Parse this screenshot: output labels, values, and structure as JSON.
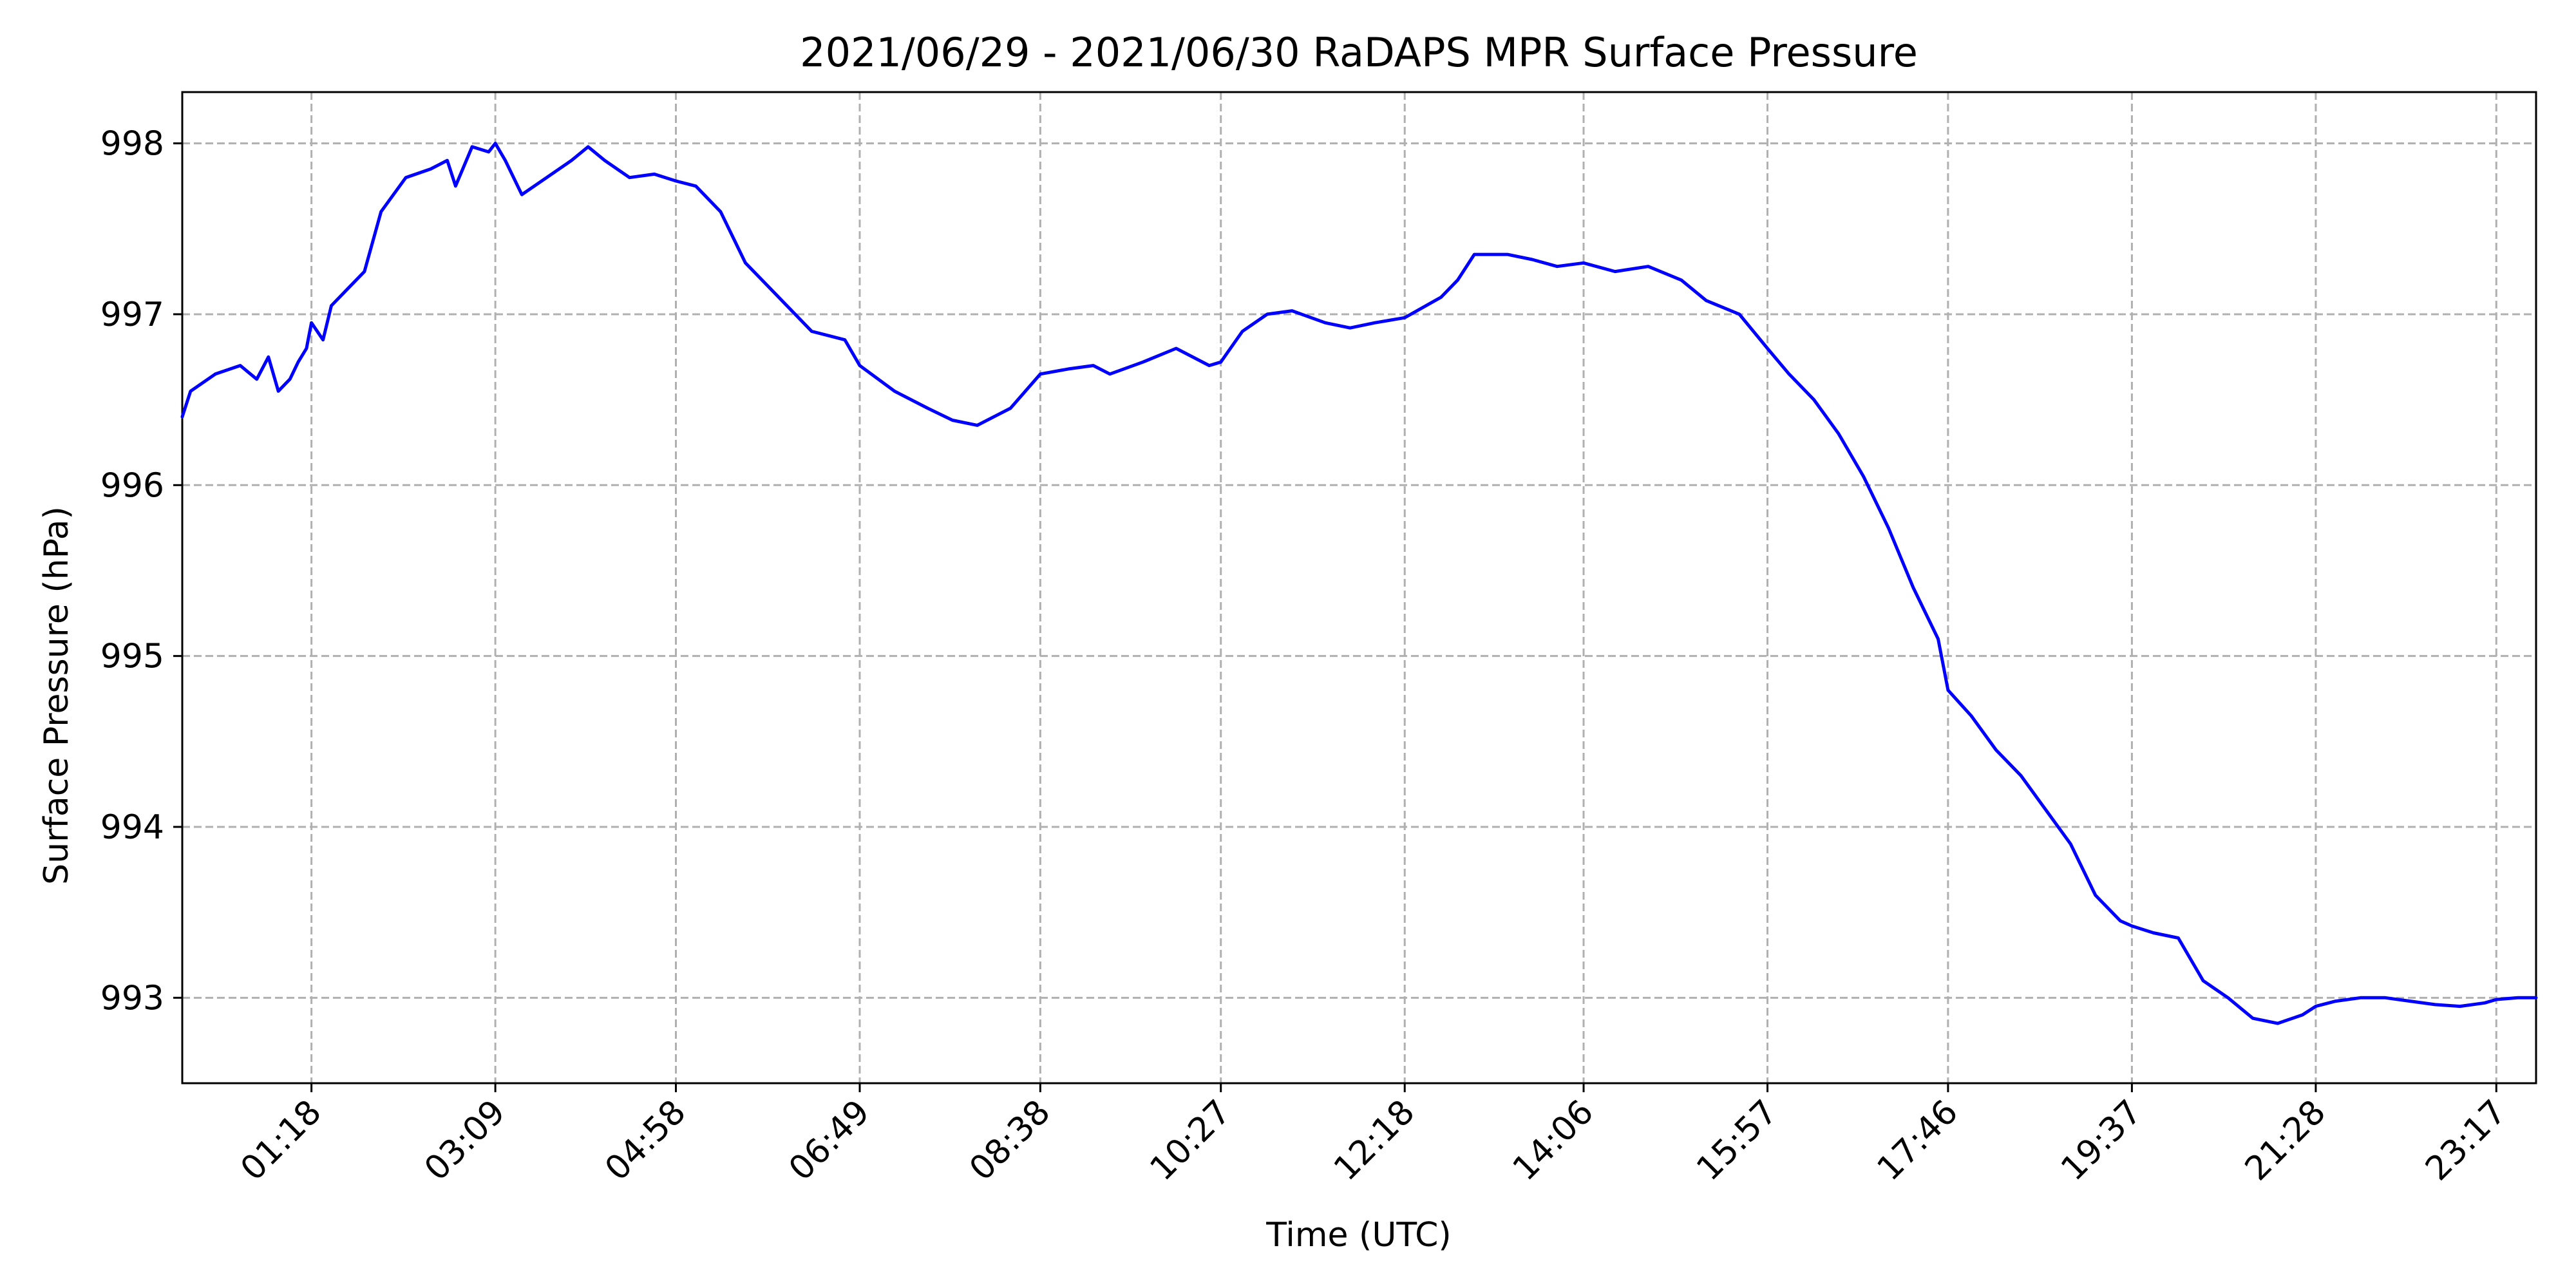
{
  "chart_data": {
    "type": "line",
    "title": "2021/06/29 - 2021/06/30 RaDAPS MPR Surface Pressure",
    "xlabel": "Time (UTC)",
    "ylabel": "Surface Pressure (hPa)",
    "xlim": [
      "00:00",
      "23:41"
    ],
    "ylim": [
      992.5,
      998.3
    ],
    "grid": true,
    "x_ticks": [
      "01:18",
      "03:09",
      "04:58",
      "06:49",
      "08:38",
      "10:27",
      "12:18",
      "14:06",
      "15:57",
      "17:46",
      "19:37",
      "21:28",
      "23:17"
    ],
    "y_ticks": [
      998,
      997,
      996,
      995,
      994,
      993
    ],
    "series": [
      {
        "color": "#0000ff",
        "x": [
          "00:00",
          "00:05",
          "00:20",
          "00:35",
          "00:45",
          "00:52",
          "00:58",
          "01:05",
          "01:10",
          "01:15",
          "01:18",
          "01:25",
          "01:30",
          "01:40",
          "01:50",
          "02:00",
          "02:15",
          "02:30",
          "02:40",
          "02:45",
          "02:55",
          "03:05",
          "03:09",
          "03:15",
          "03:25",
          "03:40",
          "03:55",
          "04:05",
          "04:15",
          "04:30",
          "04:45",
          "04:58",
          "05:10",
          "05:25",
          "05:40",
          "06:00",
          "06:20",
          "06:40",
          "06:49",
          "07:10",
          "07:30",
          "07:45",
          "08:00",
          "08:20",
          "08:38",
          "08:55",
          "09:10",
          "09:20",
          "09:40",
          "10:00",
          "10:20",
          "10:27",
          "10:40",
          "10:55",
          "11:10",
          "11:30",
          "11:45",
          "12:00",
          "12:18",
          "12:40",
          "12:50",
          "13:00",
          "13:20",
          "13:35",
          "13:50",
          "14:06",
          "14:25",
          "14:45",
          "15:05",
          "15:20",
          "15:40",
          "15:57",
          "16:10",
          "16:25",
          "16:40",
          "16:55",
          "17:10",
          "17:25",
          "17:40",
          "17:46",
          "18:00",
          "18:15",
          "18:30",
          "18:45",
          "19:00",
          "19:15",
          "19:30",
          "19:37",
          "19:50",
          "20:05",
          "20:20",
          "20:35",
          "20:50",
          "21:05",
          "21:20",
          "21:28",
          "21:40",
          "21:55",
          "22:10",
          "22:25",
          "22:40",
          "22:55",
          "23:10",
          "23:17",
          "23:30",
          "23:41"
        ],
        "values": [
          996.4,
          996.55,
          996.65,
          996.7,
          996.62,
          996.75,
          996.55,
          996.62,
          996.72,
          996.8,
          996.95,
          996.85,
          997.05,
          997.15,
          997.25,
          997.6,
          997.8,
          997.85,
          997.9,
          997.75,
          997.98,
          997.95,
          998.0,
          997.9,
          997.7,
          997.8,
          997.9,
          997.98,
          997.9,
          997.8,
          997.82,
          997.78,
          997.75,
          997.6,
          997.3,
          997.1,
          996.9,
          996.85,
          996.7,
          996.55,
          996.45,
          996.38,
          996.35,
          996.45,
          996.65,
          996.68,
          996.7,
          996.65,
          996.72,
          996.8,
          996.7,
          996.72,
          996.9,
          997.0,
          997.02,
          996.95,
          996.92,
          996.95,
          996.98,
          997.1,
          997.2,
          997.35,
          997.35,
          997.32,
          997.28,
          997.3,
          997.25,
          997.28,
          997.2,
          997.08,
          997.0,
          996.8,
          996.65,
          996.5,
          996.3,
          996.05,
          995.75,
          995.4,
          995.1,
          994.8,
          994.65,
          994.45,
          994.3,
          994.1,
          993.9,
          993.6,
          993.45,
          993.42,
          993.38,
          993.35,
          993.1,
          993.0,
          992.88,
          992.85,
          992.9,
          992.95,
          992.98,
          993.0,
          993.0,
          992.98,
          992.96,
          992.95,
          992.97,
          992.99,
          993.0,
          993.0
        ]
      }
    ]
  }
}
